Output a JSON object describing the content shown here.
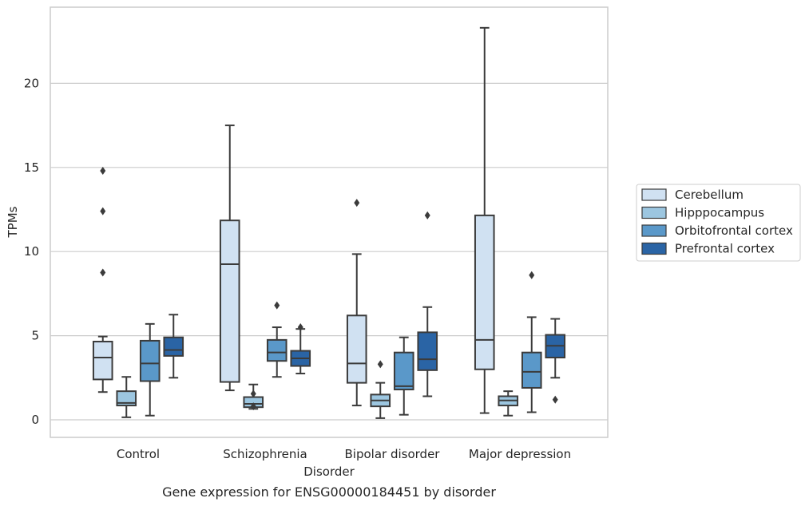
{
  "chart_data": {
    "type": "boxplot",
    "caption": "Gene expression for ENSG00000184451 by disorder",
    "xlabel": "Disorder",
    "ylabel": "TPMs",
    "ylim": [
      -1,
      24
    ],
    "yticks": [
      0,
      5,
      10,
      15,
      20
    ],
    "grid": true,
    "legend_position": "right",
    "categories": [
      "Control",
      "Schizophrenia",
      "Bipolar disorder",
      "Major depression"
    ],
    "series": [
      {
        "name": "Cerebellum",
        "color": "#d0e1f2",
        "boxes": [
          {
            "whislo": 1.65,
            "q1": 2.4,
            "med": 3.7,
            "q3": 4.65,
            "whishi": 4.95,
            "fliers": [
              8.75,
              12.4,
              14.8
            ]
          },
          {
            "whislo": 1.75,
            "q1": 2.25,
            "med": 9.25,
            "q3": 11.85,
            "whishi": 17.5,
            "fliers": []
          },
          {
            "whislo": 0.85,
            "q1": 2.2,
            "med": 3.35,
            "q3": 6.2,
            "whishi": 9.85,
            "fliers": [
              12.9
            ]
          },
          {
            "whislo": 0.4,
            "q1": 3.0,
            "med": 4.75,
            "q3": 12.15,
            "whishi": 23.3,
            "fliers": []
          }
        ]
      },
      {
        "name": "Hipppocampus",
        "color": "#9cc6e0",
        "boxes": [
          {
            "whislo": 0.15,
            "q1": 0.85,
            "med": 1.0,
            "q3": 1.7,
            "whishi": 2.55,
            "fliers": []
          },
          {
            "whislo": 0.65,
            "q1": 0.75,
            "med": 0.95,
            "q3": 1.35,
            "whishi": 2.1,
            "fliers": [
              0.8,
              1.55
            ]
          },
          {
            "whislo": 0.1,
            "q1": 0.8,
            "med": 1.15,
            "q3": 1.5,
            "whishi": 2.2,
            "fliers": [
              3.3
            ]
          },
          {
            "whislo": 0.25,
            "q1": 0.85,
            "med": 1.15,
            "q3": 1.4,
            "whishi": 1.7,
            "fliers": []
          }
        ]
      },
      {
        "name": "Orbitofrontal cortex",
        "color": "#5a98c9",
        "boxes": [
          {
            "whislo": 0.25,
            "q1": 2.3,
            "med": 3.35,
            "q3": 4.7,
            "whishi": 5.7,
            "fliers": []
          },
          {
            "whislo": 2.55,
            "q1": 3.5,
            "med": 4.0,
            "q3": 4.75,
            "whishi": 5.5,
            "fliers": [
              6.8
            ]
          },
          {
            "whislo": 0.3,
            "q1": 1.8,
            "med": 2.0,
            "q3": 4.0,
            "whishi": 4.9,
            "fliers": []
          },
          {
            "whislo": 0.45,
            "q1": 1.9,
            "med": 2.85,
            "q3": 4.0,
            "whishi": 6.1,
            "fliers": [
              8.6
            ]
          }
        ]
      },
      {
        "name": "Prefrontal cortex",
        "color": "#2a64a5",
        "boxes": [
          {
            "whislo": 2.5,
            "q1": 3.8,
            "med": 4.15,
            "q3": 4.9,
            "whishi": 6.25,
            "fliers": []
          },
          {
            "whislo": 2.75,
            "q1": 3.2,
            "med": 3.65,
            "q3": 4.1,
            "whishi": 5.4,
            "fliers": [
              5.5
            ]
          },
          {
            "whislo": 1.4,
            "q1": 2.95,
            "med": 3.6,
            "q3": 5.2,
            "whishi": 6.7,
            "fliers": [
              12.15
            ]
          },
          {
            "whislo": 2.5,
            "q1": 3.7,
            "med": 4.4,
            "q3": 5.05,
            "whishi": 6.0,
            "fliers": [
              1.2
            ]
          }
        ]
      }
    ]
  },
  "colors": {
    "grid": "#cccccc",
    "axis_frame": "#cccccc",
    "box_edge": "#3b3b3b",
    "background": "#ffffff"
  }
}
